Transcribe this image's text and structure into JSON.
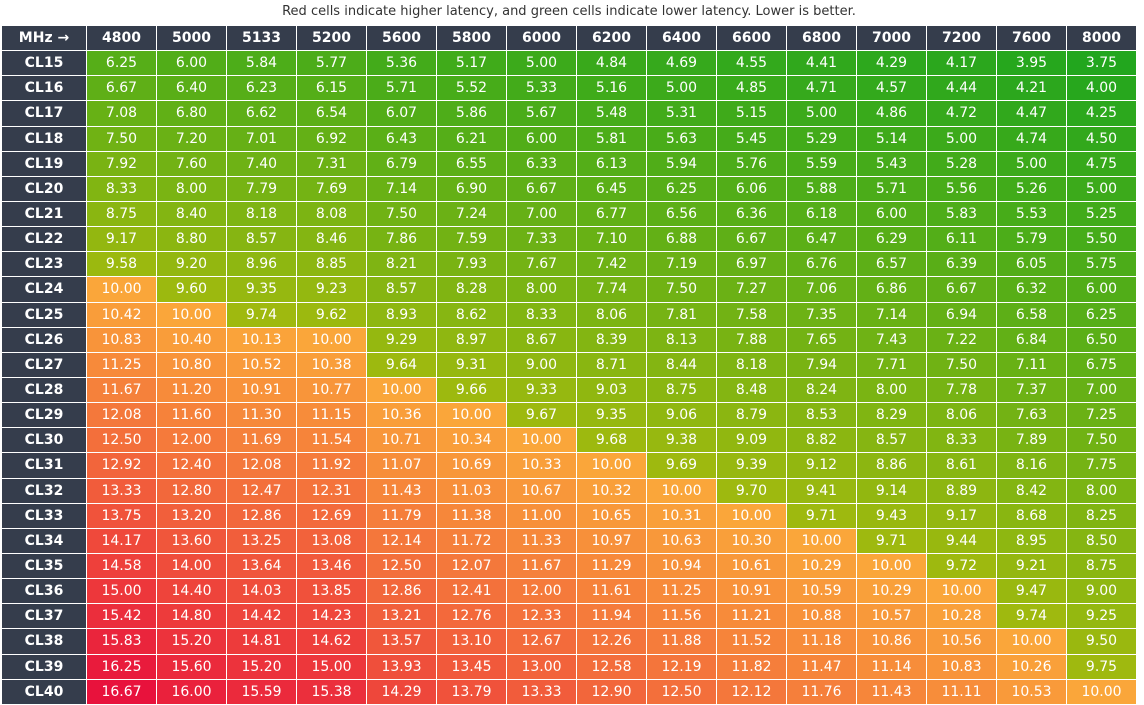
{
  "caption": "Red cells indicate higher latency, and green cells indicate lower latency. Lower is better.",
  "table": {
    "header": [
      "MHz →",
      "4800",
      "5000",
      "5133",
      "5200",
      "5600",
      "5800",
      "6000",
      "6200",
      "6400",
      "6600",
      "6800",
      "7000",
      "7200",
      "7600",
      "8000"
    ],
    "rows": [
      [
        "CL15",
        "6.25",
        "6.00",
        "5.84",
        "5.77",
        "5.36",
        "5.17",
        "5.00",
        "4.84",
        "4.69",
        "4.55",
        "4.41",
        "4.29",
        "4.17",
        "3.95",
        "3.75"
      ],
      [
        "CL16",
        "6.67",
        "6.40",
        "6.23",
        "6.15",
        "5.71",
        "5.52",
        "5.33",
        "5.16",
        "5.00",
        "4.85",
        "4.71",
        "4.57",
        "4.44",
        "4.21",
        "4.00"
      ],
      [
        "CL17",
        "7.08",
        "6.80",
        "6.62",
        "6.54",
        "6.07",
        "5.86",
        "5.67",
        "5.48",
        "5.31",
        "5.15",
        "5.00",
        "4.86",
        "4.72",
        "4.47",
        "4.25"
      ],
      [
        "CL18",
        "7.50",
        "7.20",
        "7.01",
        "6.92",
        "6.43",
        "6.21",
        "6.00",
        "5.81",
        "5.63",
        "5.45",
        "5.29",
        "5.14",
        "5.00",
        "4.74",
        "4.50"
      ],
      [
        "CL19",
        "7.92",
        "7.60",
        "7.40",
        "7.31",
        "6.79",
        "6.55",
        "6.33",
        "6.13",
        "5.94",
        "5.76",
        "5.59",
        "5.43",
        "5.28",
        "5.00",
        "4.75"
      ],
      [
        "CL20",
        "8.33",
        "8.00",
        "7.79",
        "7.69",
        "7.14",
        "6.90",
        "6.67",
        "6.45",
        "6.25",
        "6.06",
        "5.88",
        "5.71",
        "5.56",
        "5.26",
        "5.00"
      ],
      [
        "CL21",
        "8.75",
        "8.40",
        "8.18",
        "8.08",
        "7.50",
        "7.24",
        "7.00",
        "6.77",
        "6.56",
        "6.36",
        "6.18",
        "6.00",
        "5.83",
        "5.53",
        "5.25"
      ],
      [
        "CL22",
        "9.17",
        "8.80",
        "8.57",
        "8.46",
        "7.86",
        "7.59",
        "7.33",
        "7.10",
        "6.88",
        "6.67",
        "6.47",
        "6.29",
        "6.11",
        "5.79",
        "5.50"
      ],
      [
        "CL23",
        "9.58",
        "9.20",
        "8.96",
        "8.85",
        "8.21",
        "7.93",
        "7.67",
        "7.42",
        "7.19",
        "6.97",
        "6.76",
        "6.57",
        "6.39",
        "6.05",
        "5.75"
      ],
      [
        "CL24",
        "10.00",
        "9.60",
        "9.35",
        "9.23",
        "8.57",
        "8.28",
        "8.00",
        "7.74",
        "7.50",
        "7.27",
        "7.06",
        "6.86",
        "6.67",
        "6.32",
        "6.00"
      ],
      [
        "CL25",
        "10.42",
        "10.00",
        "9.74",
        "9.62",
        "8.93",
        "8.62",
        "8.33",
        "8.06",
        "7.81",
        "7.58",
        "7.35",
        "7.14",
        "6.94",
        "6.58",
        "6.25"
      ],
      [
        "CL26",
        "10.83",
        "10.40",
        "10.13",
        "10.00",
        "9.29",
        "8.97",
        "8.67",
        "8.39",
        "8.13",
        "7.88",
        "7.65",
        "7.43",
        "7.22",
        "6.84",
        "6.50"
      ],
      [
        "CL27",
        "11.25",
        "10.80",
        "10.52",
        "10.38",
        "9.64",
        "9.31",
        "9.00",
        "8.71",
        "8.44",
        "8.18",
        "7.94",
        "7.71",
        "7.50",
        "7.11",
        "6.75"
      ],
      [
        "CL28",
        "11.67",
        "11.20",
        "10.91",
        "10.77",
        "10.00",
        "9.66",
        "9.33",
        "9.03",
        "8.75",
        "8.48",
        "8.24",
        "8.00",
        "7.78",
        "7.37",
        "7.00"
      ],
      [
        "CL29",
        "12.08",
        "11.60",
        "11.30",
        "11.15",
        "10.36",
        "10.00",
        "9.67",
        "9.35",
        "9.06",
        "8.79",
        "8.53",
        "8.29",
        "8.06",
        "7.63",
        "7.25"
      ],
      [
        "CL30",
        "12.50",
        "12.00",
        "11.69",
        "11.54",
        "10.71",
        "10.34",
        "10.00",
        "9.68",
        "9.38",
        "9.09",
        "8.82",
        "8.57",
        "8.33",
        "7.89",
        "7.50"
      ],
      [
        "CL31",
        "12.92",
        "12.40",
        "12.08",
        "11.92",
        "11.07",
        "10.69",
        "10.33",
        "10.00",
        "9.69",
        "9.39",
        "9.12",
        "8.86",
        "8.61",
        "8.16",
        "7.75"
      ],
      [
        "CL32",
        "13.33",
        "12.80",
        "12.47",
        "12.31",
        "11.43",
        "11.03",
        "10.67",
        "10.32",
        "10.00",
        "9.70",
        "9.41",
        "9.14",
        "8.89",
        "8.42",
        "8.00"
      ],
      [
        "CL33",
        "13.75",
        "13.20",
        "12.86",
        "12.69",
        "11.79",
        "11.38",
        "11.00",
        "10.65",
        "10.31",
        "10.00",
        "9.71",
        "9.43",
        "9.17",
        "8.68",
        "8.25"
      ],
      [
        "CL34",
        "14.17",
        "13.60",
        "13.25",
        "13.08",
        "12.14",
        "11.72",
        "11.33",
        "10.97",
        "10.63",
        "10.30",
        "10.00",
        "9.71",
        "9.44",
        "8.95",
        "8.50"
      ],
      [
        "CL35",
        "14.58",
        "14.00",
        "13.64",
        "13.46",
        "12.50",
        "12.07",
        "11.67",
        "11.29",
        "10.94",
        "10.61",
        "10.29",
        "10.00",
        "9.72",
        "9.21",
        "8.75"
      ],
      [
        "CL36",
        "15.00",
        "14.40",
        "14.03",
        "13.85",
        "12.86",
        "12.41",
        "12.00",
        "11.61",
        "11.25",
        "10.91",
        "10.59",
        "10.29",
        "10.00",
        "9.47",
        "9.00"
      ],
      [
        "CL37",
        "15.42",
        "14.80",
        "14.42",
        "14.23",
        "13.21",
        "12.76",
        "12.33",
        "11.94",
        "11.56",
        "11.21",
        "10.88",
        "10.57",
        "10.28",
        "9.74",
        "9.25"
      ],
      [
        "CL38",
        "15.83",
        "15.20",
        "14.81",
        "14.62",
        "13.57",
        "13.10",
        "12.67",
        "12.26",
        "11.88",
        "11.52",
        "11.18",
        "10.86",
        "10.56",
        "10.00",
        "9.50"
      ],
      [
        "CL39",
        "16.25",
        "15.60",
        "15.20",
        "15.00",
        "13.93",
        "13.45",
        "13.00",
        "12.58",
        "12.19",
        "11.82",
        "11.47",
        "11.14",
        "10.83",
        "10.26",
        "9.75"
      ],
      [
        "CL40",
        "16.67",
        "16.00",
        "15.59",
        "15.38",
        "14.29",
        "13.79",
        "13.33",
        "12.90",
        "12.50",
        "12.12",
        "11.76",
        "11.43",
        "11.11",
        "10.53",
        "10.00"
      ]
    ]
  }
}
